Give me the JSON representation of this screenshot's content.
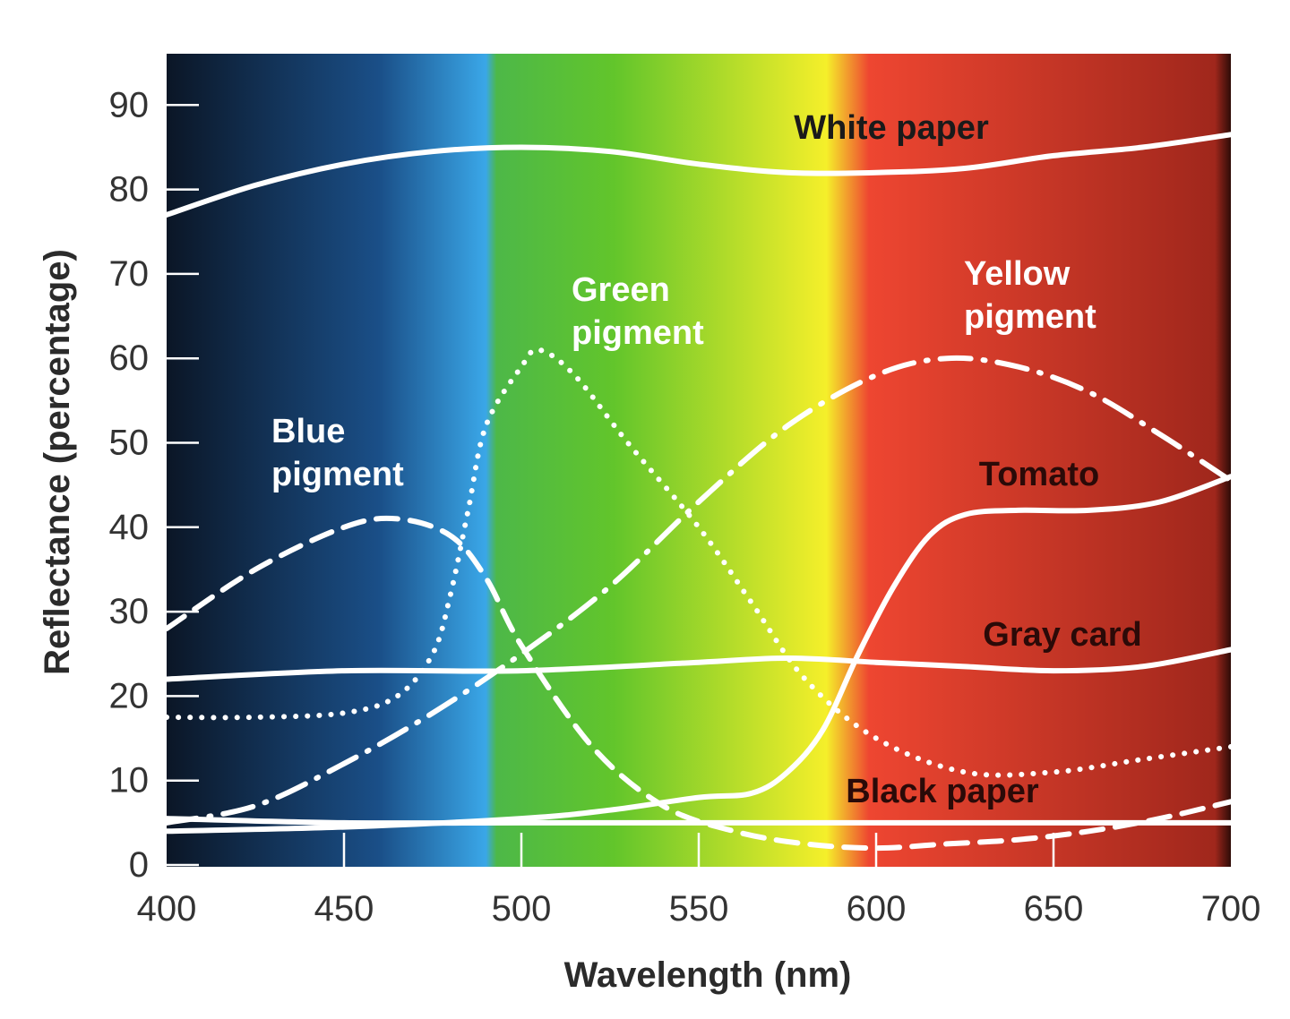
{
  "chart_data": {
    "type": "line",
    "xlabel": "Wavelength (nm)",
    "ylabel": "Reflectance (percentage)",
    "xlim": [
      400,
      700
    ],
    "ylim": [
      0,
      95
    ],
    "xticks": [
      400,
      450,
      500,
      550,
      600,
      650,
      700
    ],
    "yticks": [
      0,
      10,
      20,
      30,
      40,
      50,
      60,
      70,
      80,
      90
    ],
    "background": "visible spectrum gradient",
    "spectrum_colors": [
      "#0b1626",
      "#1a4f88",
      "#3aa7e8",
      "#4db848",
      "#62c52b",
      "#f5ef2a",
      "#ee4631",
      "#a0271c",
      "#2e0c08"
    ],
    "series": [
      {
        "name": "White paper",
        "style": "solid",
        "label_color": "#1a1a1a",
        "x": [
          400,
          425,
          450,
          475,
          500,
          525,
          550,
          575,
          600,
          625,
          650,
          675,
          700
        ],
        "y": [
          77,
          80.5,
          83,
          84.5,
          85,
          84.5,
          83,
          82,
          82,
          82.5,
          84,
          85,
          86.5
        ]
      },
      {
        "name": "Green pigment",
        "style": "dotted",
        "label_color": "#ffffff",
        "x": [
          400,
          425,
          450,
          465,
          475,
          480,
          485,
          490,
          500,
          505,
          515,
          530,
          550,
          565,
          580,
          600,
          625,
          650,
          675,
          700
        ],
        "y": [
          17.5,
          17.5,
          18,
          20,
          25,
          32,
          42,
          52,
          59,
          61,
          58,
          50,
          40,
          31,
          22,
          15,
          11,
          11,
          12.5,
          14
        ]
      },
      {
        "name": "Yellow pigment",
        "style": "dash-dot",
        "label_color": "#ffffff",
        "x": [
          400,
          425,
          450,
          475,
          500,
          525,
          550,
          575,
          600,
          620,
          640,
          660,
          680,
          700
        ],
        "y": [
          5,
          7,
          12,
          18,
          25,
          33,
          43,
          52,
          58,
          60,
          59,
          56,
          51,
          45.5
        ]
      },
      {
        "name": "Blue pigment",
        "style": "dashed",
        "label_color": "#ffffff",
        "x": [
          400,
          425,
          450,
          465,
          480,
          490,
          500,
          520,
          540,
          560,
          580,
          600,
          620,
          640,
          660,
          680,
          700
        ],
        "y": [
          28,
          35,
          40,
          41,
          39,
          34,
          26,
          14,
          7,
          4,
          2.5,
          2,
          2.5,
          3,
          4,
          5.5,
          7.5
        ]
      },
      {
        "name": "Tomato",
        "style": "solid",
        "label_color": "#2b0a08",
        "x": [
          400,
          450,
          500,
          525,
          550,
          565,
          575,
          585,
          595,
          605,
          615,
          625,
          640,
          660,
          680,
          700
        ],
        "y": [
          4,
          4.5,
          5.5,
          6.5,
          8,
          8.5,
          11,
          16,
          25,
          33,
          39,
          41.5,
          42,
          42,
          43,
          46
        ]
      },
      {
        "name": "Gray card",
        "style": "solid",
        "label_color": "#2b0a08",
        "x": [
          400,
          450,
          500,
          550,
          575,
          600,
          625,
          650,
          675,
          700
        ],
        "y": [
          22,
          23,
          23,
          24,
          24.5,
          24,
          23.5,
          23,
          23.5,
          25.5
        ]
      },
      {
        "name": "Black paper",
        "style": "solid",
        "label_color": "#2b0a08",
        "x": [
          400,
          450,
          500,
          550,
          600,
          650,
          700
        ],
        "y": [
          5.5,
          5,
          5,
          5,
          5,
          5,
          5
        ]
      }
    ]
  }
}
